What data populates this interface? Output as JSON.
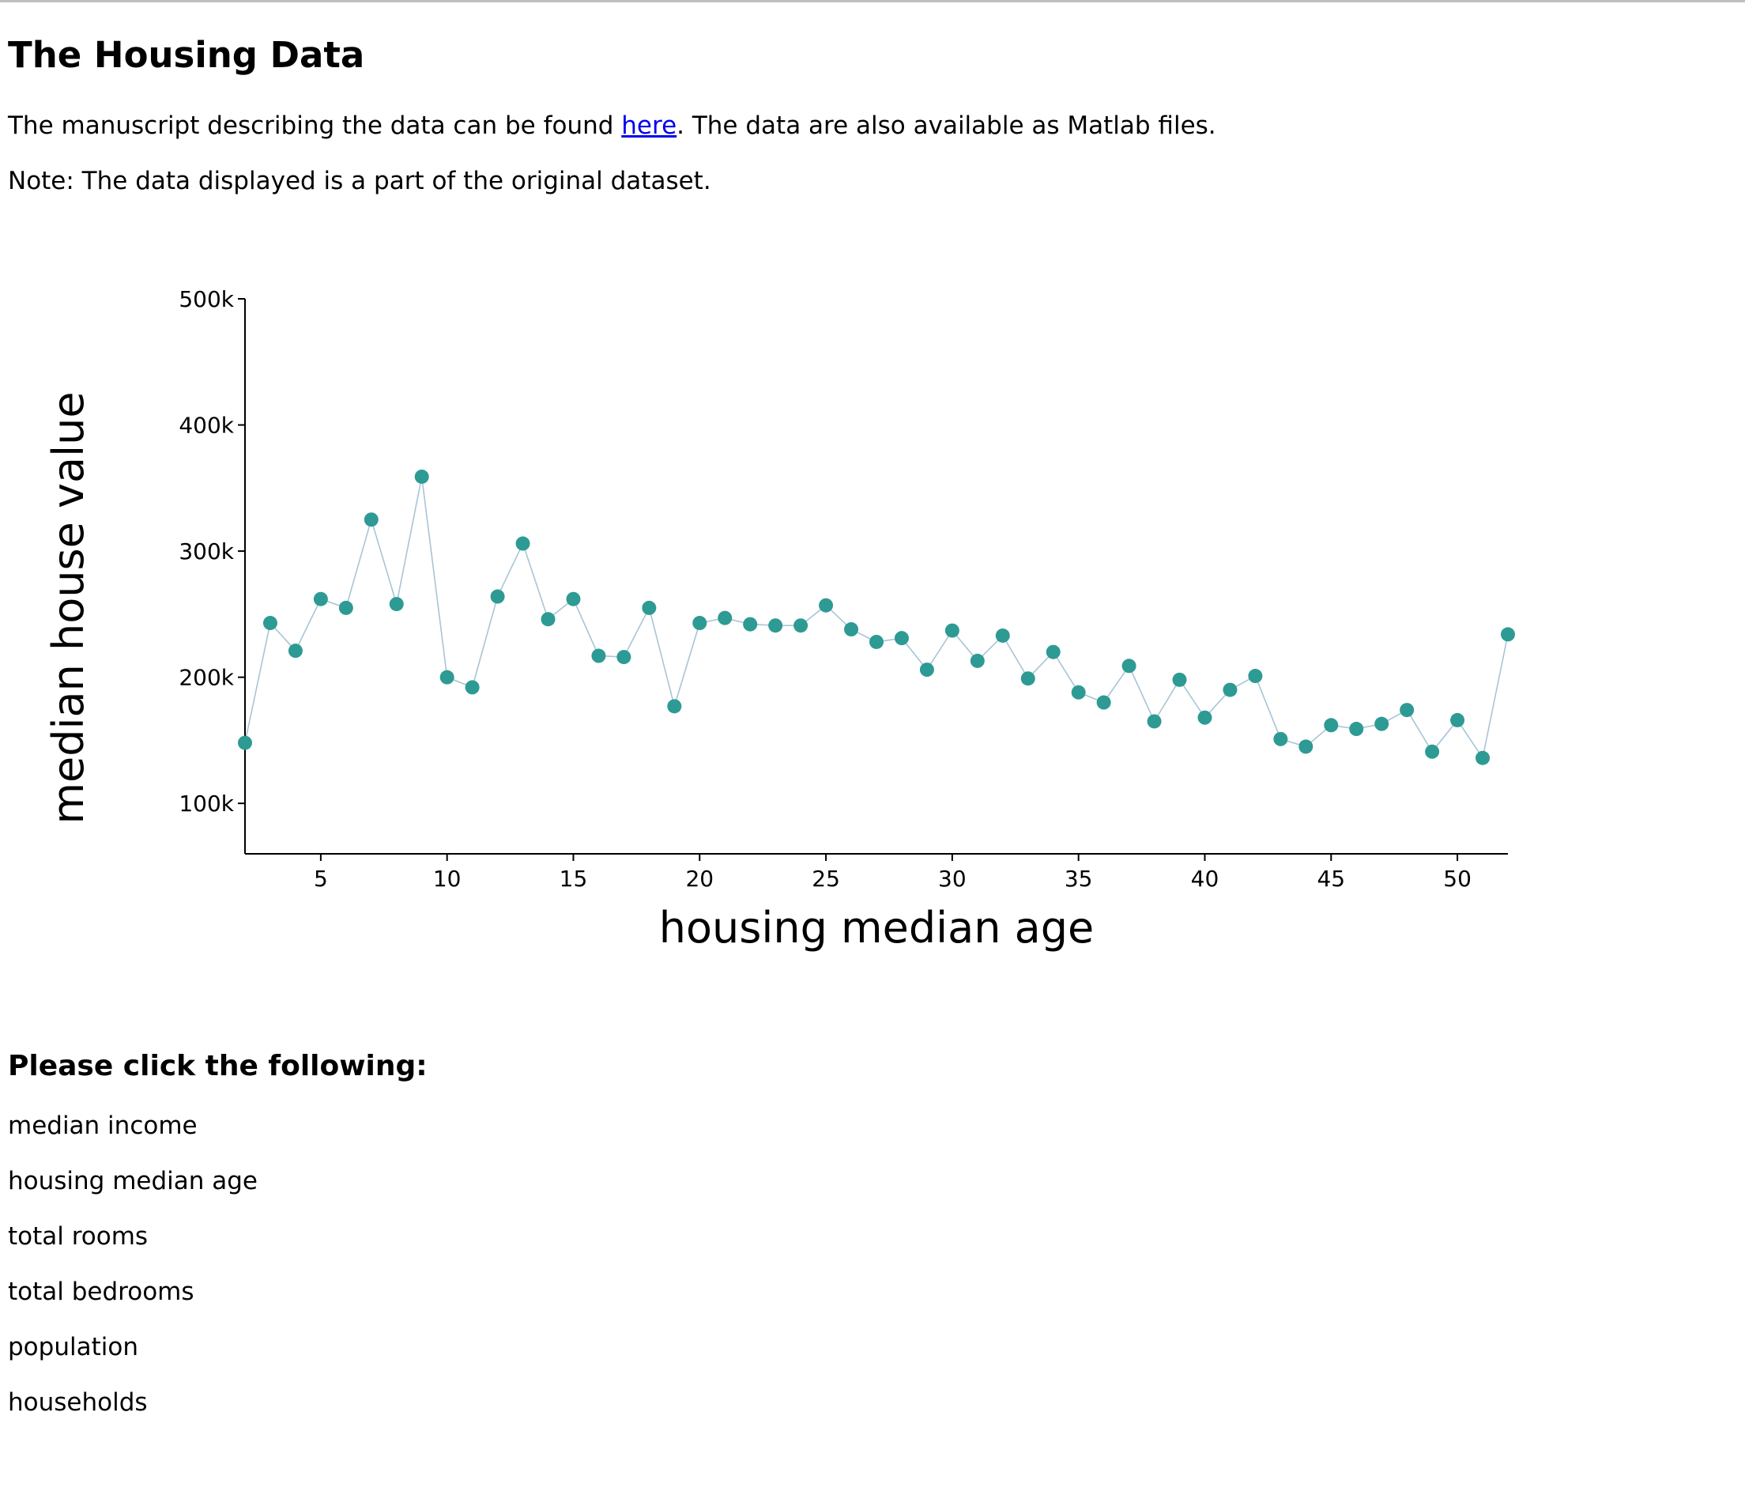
{
  "page": {
    "title": "The Housing Data",
    "intro_before": "The manuscript describing the data can be found ",
    "intro_link": "here",
    "intro_after": ". The data are also available as Matlab files.",
    "note": "Note: The data displayed is a part of the original dataset."
  },
  "options": {
    "heading": "Please click the following:",
    "items": [
      "median income",
      "housing median age",
      "total rooms",
      "total bedrooms",
      "population",
      "households"
    ]
  },
  "colors": {
    "point": "#2e9a94",
    "line": "#a9c4d6",
    "link": "#0000ee"
  },
  "chart_data": {
    "type": "line",
    "xlabel": "housing median age",
    "ylabel": "median house value",
    "xlim": [
      2,
      52
    ],
    "ylim": [
      60000,
      500000
    ],
    "xticks": [
      5,
      10,
      15,
      20,
      25,
      30,
      35,
      40,
      45,
      50
    ],
    "yticks": [
      100000,
      200000,
      300000,
      400000,
      500000
    ],
    "ytick_labels": [
      "100k",
      "200k",
      "300k",
      "400k",
      "500k"
    ],
    "x": [
      2,
      3,
      4,
      5,
      6,
      7,
      8,
      9,
      10,
      11,
      12,
      13,
      14,
      15,
      16,
      17,
      18,
      19,
      20,
      21,
      22,
      23,
      24,
      25,
      26,
      27,
      28,
      29,
      30,
      31,
      32,
      33,
      34,
      35,
      36,
      37,
      38,
      39,
      40,
      41,
      42,
      43,
      44,
      45,
      46,
      47,
      48,
      49,
      50,
      51,
      52
    ],
    "y": [
      148000,
      243000,
      221000,
      262000,
      255000,
      325000,
      258000,
      359000,
      200000,
      192000,
      264000,
      306000,
      246000,
      262000,
      217000,
      216000,
      255000,
      177000,
      243000,
      247000,
      242000,
      241000,
      241000,
      257000,
      238000,
      228000,
      231000,
      206000,
      237000,
      213000,
      233000,
      199000,
      220000,
      188000,
      180000,
      209000,
      165000,
      198000,
      168000,
      190000,
      201000,
      151000,
      145000,
      162000,
      159000,
      163000,
      174000,
      141000,
      166000,
      136000,
      234000
    ]
  }
}
